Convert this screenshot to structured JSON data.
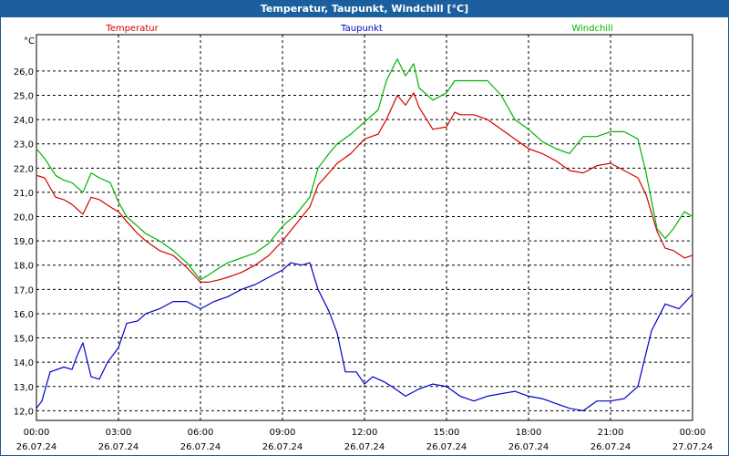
{
  "window": {
    "title": "Temperatur, Taupunkt, Windchill [°C]"
  },
  "chart_data": {
    "type": "line",
    "title": "Temperatur, Taupunkt, Windchill [°C]",
    "ylabel": "°C",
    "ylim": [
      11.6,
      27.5
    ],
    "y_ticks": [
      "12,0",
      "13,0",
      "14,0",
      "15,0",
      "16,0",
      "17,0",
      "18,0",
      "19,0",
      "20,0",
      "21,0",
      "22,0",
      "23,0",
      "24,0",
      "25,0",
      "26,0"
    ],
    "xlim": [
      0,
      24
    ],
    "x_ticks": [
      {
        "x": 0,
        "time": "00:00",
        "date": "26.07.24"
      },
      {
        "x": 3,
        "time": "03:00",
        "date": "26.07.24"
      },
      {
        "x": 6,
        "time": "06:00",
        "date": "26.07.24"
      },
      {
        "x": 9,
        "time": "09:00",
        "date": "26.07.24"
      },
      {
        "x": 12,
        "time": "12:00",
        "date": "26.07.24"
      },
      {
        "x": 15,
        "time": "15:00",
        "date": "26.07.24"
      },
      {
        "x": 18,
        "time": "18:00",
        "date": "26.07.24"
      },
      {
        "x": 21,
        "time": "21:00",
        "date": "26.07.24"
      },
      {
        "x": 24,
        "time": "00:00",
        "date": "27.07.24"
      }
    ],
    "grid": true,
    "legend_position": "top",
    "colors": {
      "Temperatur": "#d40000",
      "Taupunkt": "#0000c8",
      "Windchill": "#00b400"
    },
    "series": [
      {
        "name": "Temperatur",
        "x": [
          0,
          0.3,
          0.7,
          1,
          1.3,
          1.7,
          2,
          2.3,
          2.7,
          3,
          3.3,
          3.7,
          4,
          4.5,
          5,
          5.5,
          6,
          6.3,
          6.7,
          7,
          7.5,
          8,
          8.5,
          9,
          9.5,
          10,
          10.3,
          10.7,
          11,
          11.5,
          12,
          12.5,
          12.8,
          13.2,
          13.5,
          13.8,
          14,
          14.5,
          15,
          15.3,
          15.5,
          16,
          16.5,
          17,
          17.5,
          18,
          18.5,
          19,
          19.5,
          20,
          20.5,
          21,
          21.5,
          22,
          22.3,
          22.7,
          23,
          23.3,
          23.7,
          24
        ],
        "values": [
          21.7,
          21.6,
          20.8,
          20.7,
          20.5,
          20.1,
          20.8,
          20.7,
          20.4,
          20.2,
          19.8,
          19.3,
          19.0,
          18.6,
          18.4,
          17.9,
          17.3,
          17.3,
          17.4,
          17.5,
          17.7,
          18.0,
          18.4,
          19.0,
          19.7,
          20.4,
          21.3,
          21.8,
          22.2,
          22.6,
          23.2,
          23.4,
          24.0,
          25.0,
          24.6,
          25.1,
          24.5,
          23.6,
          23.7,
          24.3,
          24.2,
          24.2,
          24.0,
          23.6,
          23.2,
          22.8,
          22.6,
          22.3,
          21.9,
          21.8,
          22.1,
          22.2,
          21.9,
          21.6,
          20.9,
          19.4,
          18.7,
          18.6,
          18.3,
          18.4
        ]
      },
      {
        "name": "Taupunkt",
        "x": [
          0,
          0.2,
          0.5,
          1,
          1.3,
          1.5,
          1.7,
          2,
          2.3,
          2.6,
          3,
          3.3,
          3.7,
          4,
          4.5,
          5,
          5.5,
          6,
          6.5,
          7,
          7.5,
          8,
          8.5,
          9,
          9.3,
          9.7,
          10,
          10.3,
          10.7,
          11,
          11.3,
          11.7,
          12,
          12.3,
          12.7,
          13,
          13.5,
          14,
          14.5,
          15,
          15.5,
          16,
          16.5,
          17,
          17.5,
          18,
          18.5,
          19,
          19.5,
          20,
          20.5,
          21,
          21.5,
          22,
          22.5,
          23,
          23.5,
          24
        ],
        "values": [
          12.1,
          12.4,
          13.6,
          13.8,
          13.7,
          14.3,
          14.8,
          13.4,
          13.3,
          14.0,
          14.6,
          15.6,
          15.7,
          16.0,
          16.2,
          16.5,
          16.5,
          16.2,
          16.5,
          16.7,
          17.0,
          17.2,
          17.5,
          17.8,
          18.1,
          18.0,
          18.1,
          17.0,
          16.1,
          15.2,
          13.6,
          13.6,
          13.1,
          13.4,
          13.2,
          13.0,
          12.6,
          12.9,
          13.1,
          13.0,
          12.6,
          12.4,
          12.6,
          12.7,
          12.8,
          12.6,
          12.5,
          12.3,
          12.1,
          12.0,
          12.4,
          12.4,
          12.5,
          13.0,
          15.3,
          16.4,
          16.2,
          16.8
        ]
      },
      {
        "name": "Windchill",
        "x": [
          0,
          0.3,
          0.7,
          1,
          1.3,
          1.7,
          2,
          2.3,
          2.7,
          3,
          3.3,
          3.7,
          4,
          4.5,
          5,
          5.5,
          6,
          6.3,
          6.7,
          7,
          7.5,
          8,
          8.5,
          9,
          9.5,
          10,
          10.3,
          10.7,
          11,
          11.5,
          12,
          12.5,
          12.8,
          13.2,
          13.5,
          13.8,
          14,
          14.5,
          15,
          15.3,
          15.5,
          16,
          16.5,
          17,
          17.5,
          18,
          18.5,
          19,
          19.5,
          20,
          20.5,
          21,
          21.5,
          22,
          22.3,
          22.7,
          23,
          23.3,
          23.7,
          24
        ],
        "values": [
          22.8,
          22.4,
          21.7,
          21.5,
          21.4,
          21.0,
          21.8,
          21.6,
          21.4,
          20.6,
          20.0,
          19.6,
          19.3,
          19.0,
          18.6,
          18.1,
          17.4,
          17.6,
          17.9,
          18.1,
          18.3,
          18.5,
          18.9,
          19.6,
          20.1,
          20.8,
          22.0,
          22.6,
          23.0,
          23.4,
          23.9,
          24.4,
          25.6,
          26.5,
          25.8,
          26.3,
          25.3,
          24.8,
          25.1,
          25.6,
          25.6,
          25.6,
          25.6,
          25.0,
          24.0,
          23.6,
          23.1,
          22.8,
          22.6,
          23.3,
          23.3,
          23.5,
          23.5,
          23.2,
          21.8,
          19.5,
          19.1,
          19.5,
          20.2,
          20.0
        ]
      }
    ]
  }
}
